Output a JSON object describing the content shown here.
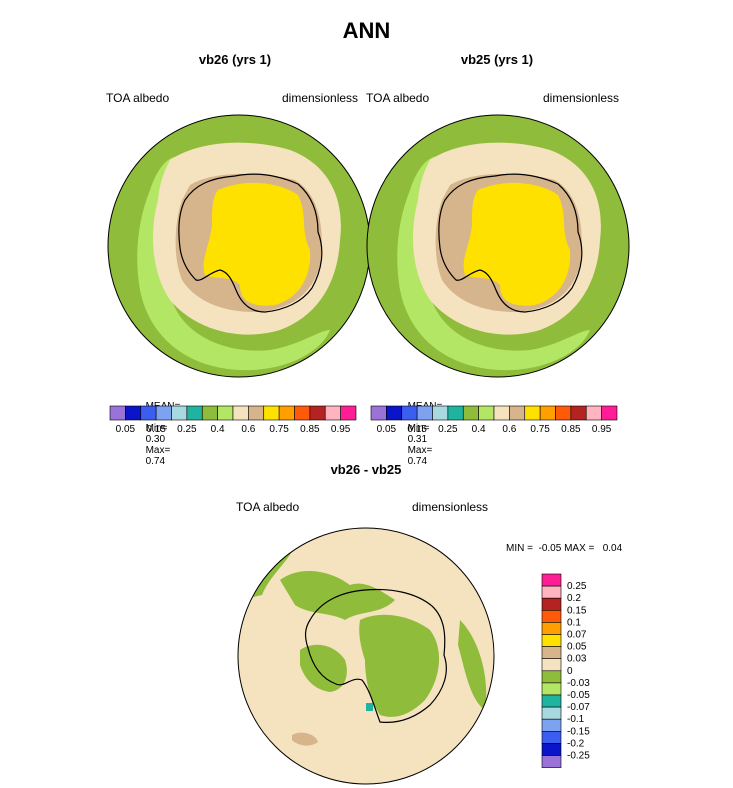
{
  "title": "ANN",
  "panels": [
    {
      "name": "vb26 (yrs 1)",
      "left_label": "TOA albedo",
      "right_label": "dimensionless",
      "stats": {
        "mean_label": "MEAN=",
        "mean": "0.54",
        "min_label": "Min=",
        "min": "0.30",
        "max_label": "Max=",
        "max": "0.74"
      }
    },
    {
      "name": "vb25 (yrs 1)",
      "left_label": "TOA albedo",
      "right_label": "dimensionless",
      "stats": {
        "mean_label": "MEAN=",
        "mean": "0.53",
        "min_label": "Min=",
        "min": "0.31",
        "max_label": "Max=",
        "max": "0.74"
      }
    }
  ],
  "diff": {
    "name": "vb26 - vb25",
    "left_label": "TOA albedo",
    "right_label": "dimensionless",
    "minmax": "MIN =  -0.05 MAX =   0.04"
  },
  "colors": {
    "ocean_green": "#8fbc3a",
    "light_green": "#b3e665",
    "sea_ice": "#f5e3bf",
    "tan": "#d6b48c",
    "yellow": "#ffe100",
    "teal": "#1eb4a0"
  },
  "chart_data": [
    {
      "type": "heatmap",
      "title": "vb26 (yrs 1)",
      "projection": "south polar stereographic",
      "variable": "TOA albedo",
      "units": "dimensionless",
      "mean": 0.54,
      "min": 0.3,
      "max": 0.74,
      "colorbar": {
        "levels": [
          0.05,
          0.1,
          0.15,
          0.2,
          0.25,
          0.3,
          0.4,
          0.5,
          0.6,
          0.7,
          0.75,
          0.8,
          0.85,
          0.9,
          0.95
        ],
        "tick_labels": [
          "0.05",
          "0.15",
          "0.25",
          "0.4",
          "0.6",
          "0.75",
          "0.85",
          "0.95"
        ],
        "colors": [
          "#9a72d8",
          "#0a14c8",
          "#3c5ef0",
          "#7ca2f0",
          "#a8d8e0",
          "#1eb4a0",
          "#8fbc3a",
          "#b3e665",
          "#f5e3bf",
          "#d6b48c",
          "#ffe100",
          "#ffa000",
          "#ff5a0a",
          "#b42222",
          "#ffb4c0",
          "#ff1e96"
        ]
      }
    },
    {
      "type": "heatmap",
      "title": "vb25 (yrs 1)",
      "projection": "south polar stereographic",
      "variable": "TOA albedo",
      "units": "dimensionless",
      "mean": 0.53,
      "min": 0.31,
      "max": 0.74,
      "colorbar": {
        "levels": [
          0.05,
          0.1,
          0.15,
          0.2,
          0.25,
          0.3,
          0.4,
          0.5,
          0.6,
          0.7,
          0.75,
          0.8,
          0.85,
          0.9,
          0.95
        ],
        "tick_labels": [
          "0.05",
          "0.15",
          "0.25",
          "0.4",
          "0.6",
          "0.75",
          "0.85",
          "0.95"
        ],
        "colors": [
          "#9a72d8",
          "#0a14c8",
          "#3c5ef0",
          "#7ca2f0",
          "#a8d8e0",
          "#1eb4a0",
          "#8fbc3a",
          "#b3e665",
          "#f5e3bf",
          "#d6b48c",
          "#ffe100",
          "#ffa000",
          "#ff5a0a",
          "#b42222",
          "#ffb4c0",
          "#ff1e96"
        ]
      }
    },
    {
      "type": "heatmap",
      "title": "vb26 - vb25",
      "projection": "south polar stereographic",
      "variable": "TOA albedo",
      "units": "dimensionless",
      "min": -0.05,
      "max": 0.04,
      "colorbar": {
        "tick_labels": [
          "0.25",
          "0.2",
          "0.15",
          "0.1",
          "0.07",
          "0.05",
          "0.03",
          "0",
          "-0.03",
          "-0.05",
          "-0.07",
          "-0.1",
          "-0.15",
          "-0.2",
          "-0.25"
        ],
        "colors": [
          "#ff1e96",
          "#ffb4c0",
          "#b42222",
          "#ff5a0a",
          "#ffa000",
          "#ffe100",
          "#d6b48c",
          "#f5e3bf",
          "#8fbc3a",
          "#b3e665",
          "#1eb4a0",
          "#a8d8e0",
          "#7ca2f0",
          "#3c5ef0",
          "#0a14c8",
          "#9a72d8"
        ]
      }
    }
  ]
}
